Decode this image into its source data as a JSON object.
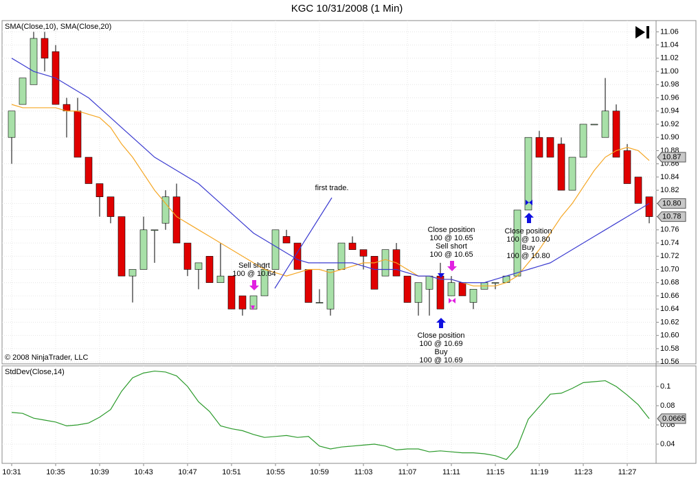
{
  "chart_data": [
    {
      "type": "candlestick",
      "title": "KGC  10/31/2008 (1 Min)",
      "subtitle": "SMA(Close,10), SMA(Close,20)",
      "copyright": "© 2008 NinjaTrader, LLC",
      "categories": [
        "10:31",
        null,
        null,
        null,
        "10:35",
        null,
        null,
        null,
        "10:39",
        null,
        null,
        null,
        "10:43",
        null,
        null,
        null,
        "10:47",
        null,
        null,
        null,
        "10:51",
        null,
        null,
        null,
        "10:55",
        null,
        null,
        null,
        "10:59",
        null,
        null,
        null,
        "11:03",
        null,
        null,
        null,
        "11:07",
        null,
        null,
        null,
        "11:11",
        null,
        null,
        null,
        "11:15",
        null,
        null,
        null,
        "11:19",
        null,
        null,
        null,
        "11:23",
        null,
        null,
        null,
        "11:27",
        null,
        null
      ],
      "open": [
        10.9,
        10.95,
        10.98,
        11.05,
        11.03,
        10.95,
        10.94,
        10.87,
        10.83,
        10.81,
        10.78,
        10.69,
        10.7,
        10.76,
        10.77,
        10.81,
        10.74,
        10.7,
        10.72,
        10.68,
        10.69,
        10.66,
        10.64,
        10.66,
        10.7,
        10.75,
        10.74,
        10.7,
        10.65,
        10.64,
        10.7,
        10.74,
        10.73,
        10.72,
        10.69,
        10.73,
        10.69,
        10.65,
        10.67,
        10.69,
        10.66,
        10.68,
        10.65,
        10.67,
        10.68,
        10.68,
        10.69,
        10.79,
        10.9,
        10.9,
        10.89,
        10.82,
        10.87,
        10.92,
        10.9,
        10.94,
        10.88,
        10.84,
        10.81
      ],
      "high": [
        10.94,
        10.99,
        11.06,
        11.06,
        11.04,
        10.96,
        10.96,
        10.87,
        10.83,
        10.81,
        10.78,
        10.7,
        10.78,
        10.76,
        10.82,
        10.83,
        10.74,
        10.71,
        10.72,
        10.74,
        10.69,
        10.66,
        10.66,
        10.71,
        10.76,
        10.76,
        10.74,
        10.7,
        10.67,
        10.7,
        10.74,
        10.75,
        10.73,
        10.72,
        10.73,
        10.74,
        10.69,
        10.68,
        10.69,
        10.71,
        10.69,
        10.68,
        10.67,
        10.68,
        10.68,
        10.69,
        10.79,
        10.9,
        10.91,
        10.9,
        10.9,
        10.87,
        10.92,
        10.92,
        10.99,
        10.95,
        10.89,
        10.84,
        10.81
      ],
      "low": [
        10.86,
        10.95,
        10.98,
        11.0,
        10.95,
        10.9,
        10.87,
        10.83,
        10.78,
        10.77,
        10.69,
        10.65,
        10.7,
        10.71,
        10.76,
        10.74,
        10.69,
        10.67,
        10.68,
        10.68,
        10.64,
        10.63,
        10.64,
        10.66,
        10.7,
        10.74,
        10.7,
        10.65,
        10.65,
        10.63,
        10.7,
        10.73,
        10.7,
        10.67,
        10.69,
        10.69,
        10.65,
        10.63,
        10.63,
        10.64,
        10.66,
        10.66,
        10.64,
        10.67,
        10.67,
        10.68,
        10.69,
        10.79,
        10.87,
        10.87,
        10.82,
        10.82,
        10.87,
        10.92,
        10.9,
        10.87,
        10.83,
        10.8,
        10.77
      ],
      "close": [
        10.94,
        10.99,
        11.05,
        11.02,
        10.95,
        10.94,
        10.87,
        10.83,
        10.81,
        10.78,
        10.69,
        10.7,
        10.76,
        10.76,
        10.81,
        10.74,
        10.7,
        10.71,
        10.68,
        10.69,
        10.64,
        10.64,
        10.66,
        10.7,
        10.76,
        10.74,
        10.7,
        10.65,
        10.65,
        10.7,
        10.74,
        10.73,
        10.72,
        10.67,
        10.73,
        10.69,
        10.65,
        10.68,
        10.69,
        10.64,
        10.68,
        10.66,
        10.67,
        10.68,
        10.68,
        10.69,
        10.79,
        10.9,
        10.87,
        10.87,
        10.82,
        10.87,
        10.92,
        10.92,
        10.94,
        10.87,
        10.83,
        10.8,
        10.78
      ],
      "up_color": "#a8e0a8",
      "down_color": "#e00000",
      "overlays": [
        {
          "color": "#f5a623",
          "values": [
            10.95,
            10.945,
            10.945,
            10.945,
            10.945,
            10.94,
            10.94,
            10.935,
            10.93,
            10.915,
            10.89,
            10.87,
            10.845,
            10.82,
            10.8,
            10.78,
            10.77,
            10.76,
            10.75,
            10.74,
            10.73,
            10.72,
            10.71,
            10.7,
            10.695,
            10.69,
            10.695,
            10.7,
            10.7,
            10.695,
            10.7,
            10.705,
            10.71,
            10.71,
            10.715,
            10.71,
            10.7,
            10.69,
            10.69,
            10.685,
            10.685,
            10.68,
            10.675,
            10.675,
            10.675,
            10.68,
            10.69,
            10.71,
            10.73,
            10.755,
            10.78,
            10.8,
            10.825,
            10.85,
            10.87,
            10.88,
            10.885,
            10.88,
            10.865
          ]
        },
        {
          "color": "#3a3ad0",
          "values": [
            11.02,
            11.01,
            11.0,
            10.995,
            10.99,
            10.98,
            10.97,
            10.96,
            10.945,
            10.93,
            10.915,
            10.9,
            10.885,
            10.87,
            10.86,
            10.85,
            10.84,
            10.83,
            10.815,
            10.8,
            10.785,
            10.77,
            10.755,
            10.745,
            10.735,
            10.725,
            10.715,
            10.71,
            10.71,
            10.71,
            10.71,
            10.71,
            10.705,
            10.7,
            10.7,
            10.7,
            10.695,
            10.69,
            10.69,
            10.685,
            10.685,
            10.68,
            10.68,
            10.68,
            10.685,
            10.69,
            10.695,
            10.7,
            10.705,
            10.71,
            10.72,
            10.73,
            10.74,
            10.75,
            10.76,
            10.77,
            10.78,
            10.79,
            10.8
          ]
        }
      ],
      "ylim": [
        10.557,
        11.077
      ],
      "yticks": [
        10.56,
        10.58,
        {
          "value": 10.6,
          "label": "10.60"
        },
        10.62,
        10.64,
        10.66,
        10.68,
        {
          "value": 10.7,
          "label": "10.70"
        },
        10.72,
        10.74,
        10.76,
        10.78,
        {
          "value": 10.8,
          "label": "10.80"
        },
        10.82,
        10.84,
        10.86,
        10.88,
        {
          "value": 10.9,
          "label": "10.90"
        },
        10.92,
        10.94,
        10.96,
        10.98,
        {
          "value": 11.0,
          "label": "11.00"
        },
        11.02,
        11.04,
        11.06
      ],
      "grid": true,
      "last_labels": [
        10.87,
        {
          "value": 10.8,
          "label": "10.80"
        },
        10.78
      ],
      "annotations": [
        {
          "lines": [
            "first trade."
          ]
        },
        {
          "lines": [
            "Sell short",
            "100 @ 10.64"
          ]
        },
        {
          "lines": [
            "Close position",
            "100 @ 10.65",
            "Sell short",
            "100 @ 10.65"
          ]
        },
        {
          "lines": [
            "Close position",
            "100 @ 10.69",
            "Buy",
            "100 @ 10.69"
          ]
        },
        {
          "lines": [
            "Close position",
            "100 @ 10.80",
            "Buy",
            "100 @ 10.80"
          ]
        }
      ]
    },
    {
      "type": "line",
      "subtitle": "StdDev(Close,14)",
      "series": [
        {
          "color": "#2a9a2a",
          "values": [
            0.073,
            0.072,
            0.067,
            0.065,
            0.063,
            0.059,
            0.06,
            0.062,
            0.068,
            0.076,
            0.095,
            0.109,
            0.114,
            0.116,
            0.115,
            0.111,
            0.1,
            0.084,
            0.074,
            0.059,
            0.056,
            0.054,
            0.05,
            0.047,
            0.048,
            0.049,
            0.047,
            0.048,
            0.038,
            0.035,
            0.037,
            0.038,
            0.039,
            0.04,
            0.038,
            0.034,
            0.035,
            0.035,
            0.032,
            0.033,
            0.032,
            0.031,
            0.031,
            0.03,
            0.028,
            0.024,
            0.037,
            0.066,
            0.079,
            0.092,
            0.093,
            0.098,
            0.104,
            0.105,
            0.106,
            0.1,
            0.091,
            0.081,
            0.0665
          ]
        }
      ],
      "ylim": [
        0.02,
        0.1214
      ],
      "yticks": [
        0.04,
        0.06,
        0.08,
        0.1
      ],
      "grid": true,
      "last_labels": [
        {
          "value": 0.0665,
          "label": "0.0665"
        }
      ]
    }
  ]
}
